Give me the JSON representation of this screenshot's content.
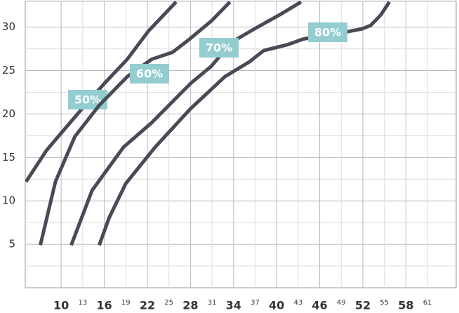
{
  "chart_data": {
    "type": "line",
    "xlim": [
      5,
      65
    ],
    "ylim": [
      0,
      33
    ],
    "xticks": [
      10,
      13,
      16,
      19,
      22,
      25,
      28,
      31,
      34,
      37,
      40,
      43,
      46,
      49,
      52,
      55,
      58,
      61
    ],
    "yticks": [
      5,
      10,
      15,
      20,
      25,
      30
    ],
    "grid": true,
    "series": [
      {
        "name": "50%",
        "color": "#4a4a56",
        "x": [
          5.1,
          7.95,
          10,
          12.9,
          16,
          19.2,
          22.1,
          26
        ],
        "values": [
          12.2,
          15.8,
          17.8,
          20.6,
          23.5,
          26.3,
          29.5,
          32.9
        ]
      },
      {
        "name": "60%",
        "color": "#4a4a56",
        "x": [
          7.1,
          9.2,
          11.9,
          15.3,
          19.2,
          22.6,
          25.5,
          28,
          30.9,
          33.5
        ],
        "values": [
          4.9,
          12.2,
          17.4,
          21,
          24.3,
          26.3,
          27.1,
          28.7,
          30.7,
          32.9
        ]
      },
      {
        "name": "70%",
        "color": "#4a4a56",
        "x": [
          11.4,
          14.3,
          18.7,
          22.6,
          28,
          30.9,
          33.8,
          36.7,
          40.6,
          43.4
        ],
        "values": [
          4.9,
          11.2,
          16.2,
          19,
          23.5,
          25.5,
          28.3,
          29.7,
          31.5,
          32.9
        ]
      },
      {
        "name": "80%",
        "color": "#4a4a56",
        "x": [
          15.3,
          16.7,
          19,
          23.1,
          28,
          32.8,
          36.2,
          38.2,
          41.6,
          43.6,
          46,
          49.4,
          51.9,
          53.1,
          54.5,
          55.7
        ],
        "values": [
          4.9,
          8.1,
          12,
          16.2,
          20.6,
          24.3,
          26,
          27.3,
          28,
          28.6,
          29,
          29.4,
          29.8,
          30.2,
          31.4,
          32.9
        ]
      }
    ],
    "label_color": "#93cdd0"
  }
}
